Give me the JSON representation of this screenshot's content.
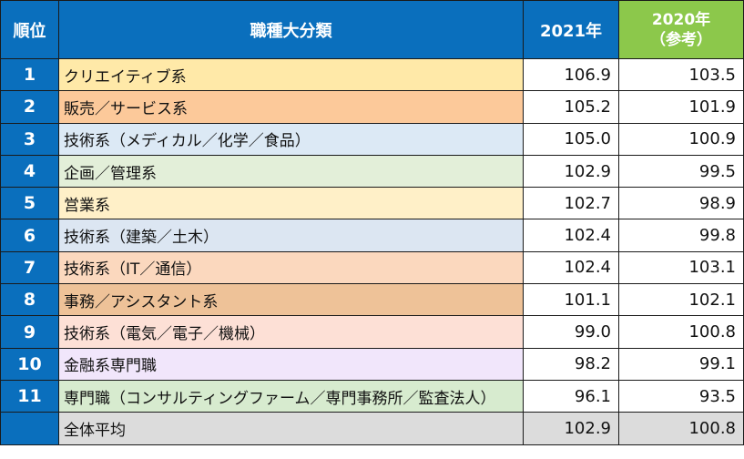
{
  "header": {
    "rank": "順位",
    "category": "職種大分類",
    "y2021": "2021年",
    "y2020": "2020年",
    "y2020_note": "（参考）"
  },
  "rows": [
    {
      "rank": "1",
      "name": "クリエイティブ系",
      "v2021": "106.9",
      "v2020": "103.5",
      "color": "#ffe9a8"
    },
    {
      "rank": "2",
      "name": "販売／サービス系",
      "v2021": "105.2",
      "v2020": "101.9",
      "color": "#fcc99a"
    },
    {
      "rank": "3",
      "name": "技術系（メディカル／化学／食品）",
      "v2021": "105.0",
      "v2020": "100.9",
      "color": "#dce9f5"
    },
    {
      "rank": "4",
      "name": "企画／管理系",
      "v2021": "102.9",
      "v2020": "99.5",
      "color": "#e3efd9"
    },
    {
      "rank": "5",
      "name": "営業系",
      "v2021": "102.7",
      "v2020": "98.9",
      "color": "#fff0c8"
    },
    {
      "rank": "6",
      "name": "技術系（建築／土木）",
      "v2021": "102.4",
      "v2020": "99.8",
      "color": "#dce6f2"
    },
    {
      "rank": "7",
      "name": "技術系（IT／通信）",
      "v2021": "102.4",
      "v2020": "103.1",
      "color": "#fbd8be"
    },
    {
      "rank": "8",
      "name": "事務／アシスタント系",
      "v2021": "101.1",
      "v2020": "102.1",
      "color": "#eec298"
    },
    {
      "rank": "9",
      "name": "技術系（電気／電子／機械）",
      "v2021": "99.0",
      "v2020": "100.8",
      "color": "#fde0d6"
    },
    {
      "rank": "10",
      "name": "金融系専門職",
      "v2021": "98.2",
      "v2020": "99.1",
      "color": "#f1e6fb"
    },
    {
      "rank": "11",
      "name": "専門職（コンサルティングファーム／専門事務所／監査法人）",
      "v2021": "96.1",
      "v2020": "93.5",
      "color": "#d7ebcf"
    }
  ],
  "average": {
    "name": "全体平均",
    "v2021": "102.9",
    "v2020": "100.8"
  }
}
